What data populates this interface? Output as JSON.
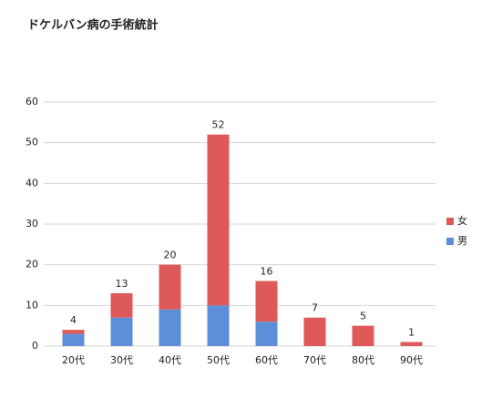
{
  "chart_data": {
    "type": "stacked-bar",
    "title": "ドケルバン病の手術統計",
    "categories": [
      "20代",
      "30代",
      "40代",
      "50代",
      "60代",
      "70代",
      "80代",
      "90代"
    ],
    "series": [
      {
        "name": "男",
        "color": "#5b8fd9",
        "values": [
          3,
          7,
          9,
          10,
          6,
          0,
          0,
          0
        ]
      },
      {
        "name": "女",
        "color": "#de5a58",
        "values": [
          1,
          6,
          11,
          42,
          10,
          7,
          5,
          1
        ]
      }
    ],
    "totals": [
      4,
      13,
      20,
      52,
      16,
      7,
      5,
      1
    ],
    "ylim": [
      0,
      60
    ],
    "yticks": [
      0,
      10,
      20,
      30,
      40,
      50,
      60
    ],
    "grid": true,
    "legend": "right"
  }
}
